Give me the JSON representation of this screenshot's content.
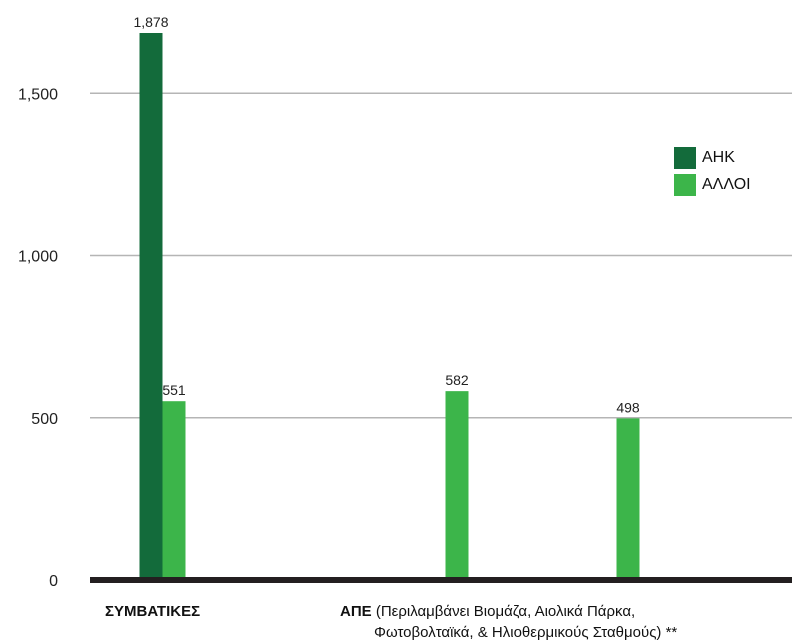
{
  "chart_data": {
    "type": "bar",
    "categories": [
      "ΣΥΜΒΑΤΙΚΕΣ",
      "ΑΠΕ (Περιλαμβάνει Βιομάζα, Αιολικά Πάρκα, Φωτοβολταϊκά, & Ηλιοθερμικούς Σταθμούς) **"
    ],
    "category_labels": [
      {
        "bold": "ΣΥΜΒΑΤΙΚΕΣ",
        "rest": "",
        "line2": ""
      },
      {
        "bold": "ΑΠΕ",
        "rest": " (Περιλαμβάνει Βιομάζα, Αιολικά Πάρκα,",
        "line2": "Φωτοβολταϊκά, & Ηλιοθερμικούς Σταθμούς) **"
      }
    ],
    "series": [
      {
        "name": "ΑΗΚ",
        "color": "#136b3b",
        "bars": [
          {
            "category": 0,
            "value": 1878
          }
        ]
      },
      {
        "name": "ΑΛΛΟΙ",
        "color": "#3cb54a",
        "bars": [
          {
            "category": 0,
            "value": 551
          },
          {
            "category": 1,
            "value": 582
          },
          {
            "category": 1,
            "value": 498
          }
        ]
      }
    ],
    "data_labels": [
      "1,878",
      "551",
      "582",
      "498"
    ],
    "y_ticks": [
      {
        "value": 0,
        "label": "0"
      },
      {
        "value": 500,
        "label": "500"
      },
      {
        "value": 1000,
        "label": "1,000"
      },
      {
        "value": 1500,
        "label": "1,500"
      }
    ],
    "ylim": [
      0,
      1700
    ],
    "grid": true,
    "legend_position": "right",
    "title": "",
    "xlabel": "",
    "ylabel": ""
  }
}
